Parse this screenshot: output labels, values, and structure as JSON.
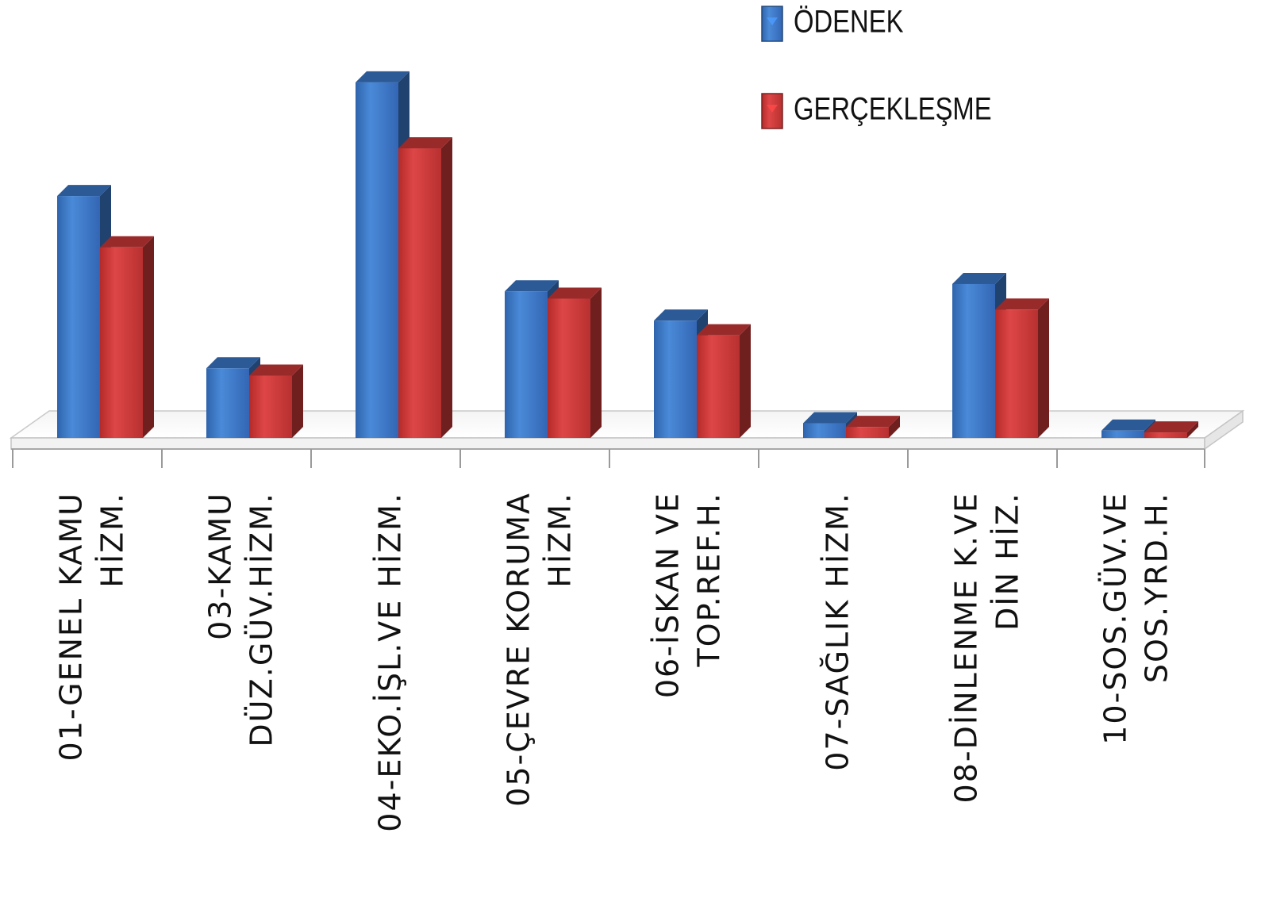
{
  "chart_data": {
    "type": "bar",
    "title": "",
    "xlabel": "",
    "ylabel": "",
    "ylim": [
      0,
      100
    ],
    "grid": false,
    "legend_position": "top-right",
    "categories": [
      [
        "01-GENEL KAMU",
        "HİZM."
      ],
      [
        "03-KAMU",
        "DÜZ.GÜV.HİZM."
      ],
      [
        "04-EKO.İŞL.VE  HİZM."
      ],
      [
        "05-ÇEVRE KORUMA",
        "HİZM."
      ],
      [
        "06-İSKAN VE",
        "TOP.REF.H."
      ],
      [
        "07-SAĞLIK HİZM."
      ],
      [
        "08-DİNLENME  K.VE",
        "DİN HİZ."
      ],
      [
        "10-SOS.GÜV.VE",
        "SOS.YRD.H."
      ]
    ],
    "series": [
      {
        "name": "ÖDENEK",
        "color": "#3b78c9",
        "values": [
          66,
          19,
          97,
          40,
          32,
          4,
          42,
          2
        ]
      },
      {
        "name": "GERÇEKLEŞME",
        "color": "#cc3838",
        "values": [
          52,
          17,
          79,
          38,
          28,
          3,
          35,
          1.5
        ]
      }
    ]
  }
}
